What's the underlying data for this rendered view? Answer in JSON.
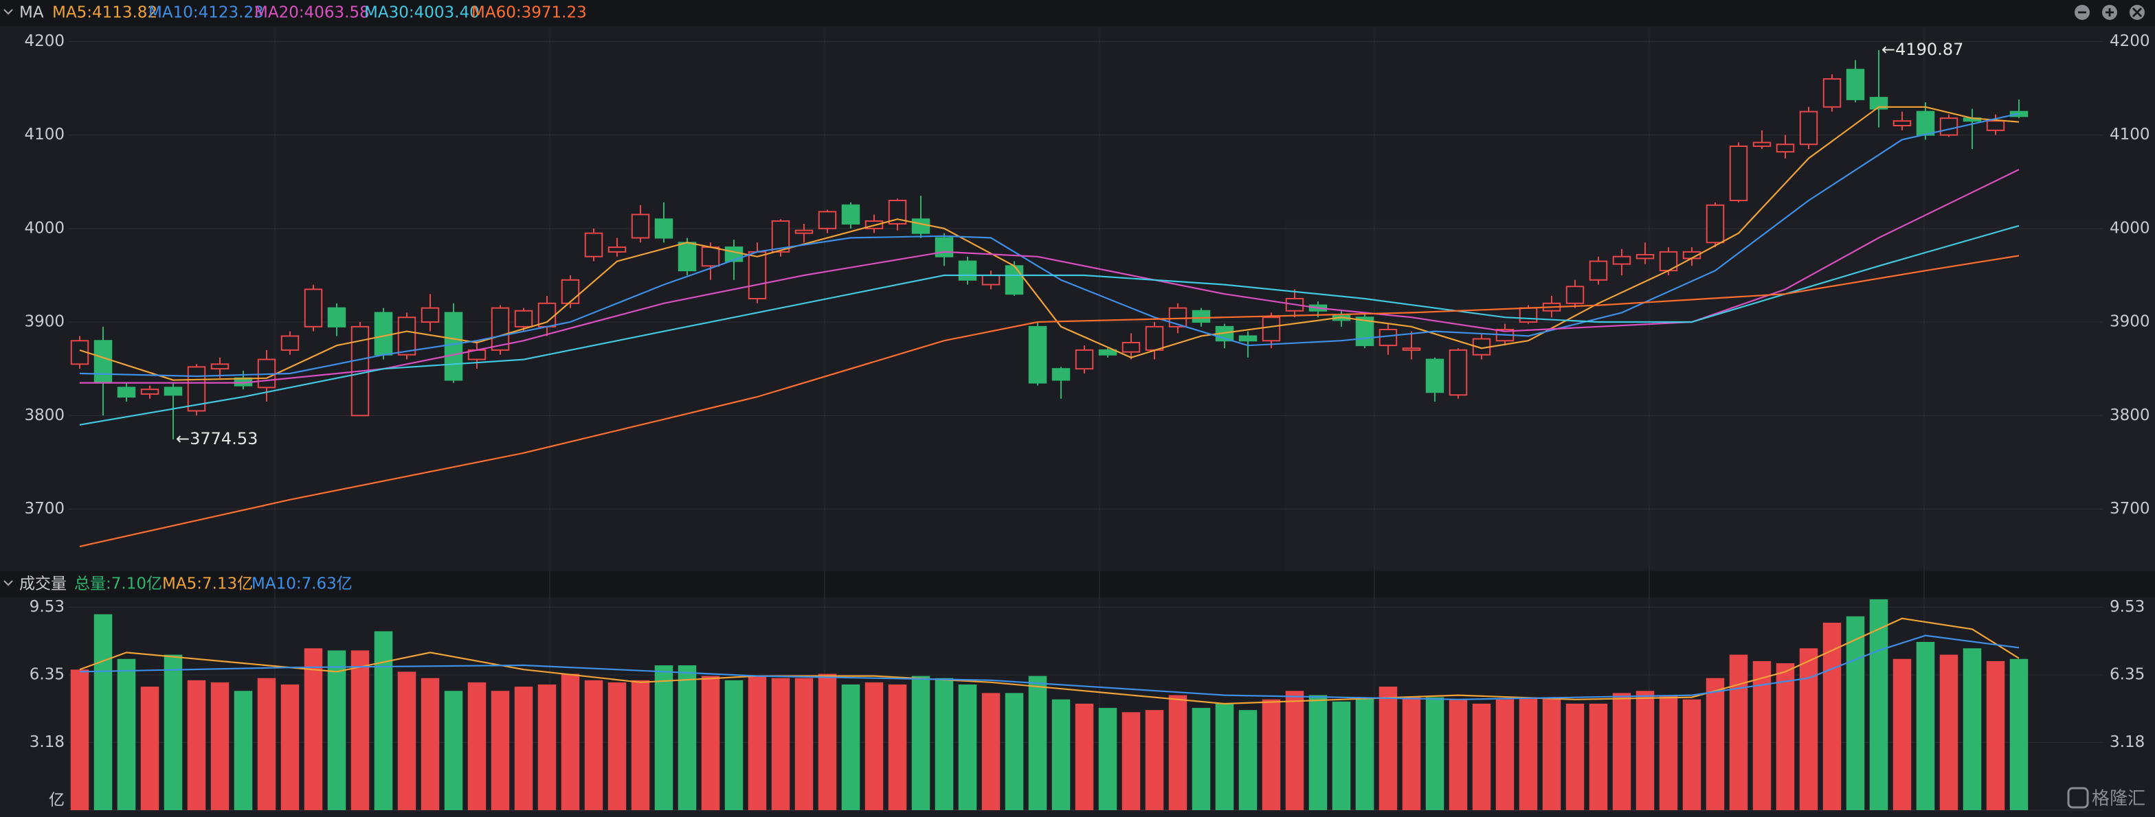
{
  "chart_data": [
    {
      "type": "candlestick",
      "title": "MA",
      "up_color": "#e9464a",
      "down_color": "#2db56d",
      "open": [
        3855,
        3880,
        3830,
        3823,
        3830,
        3805,
        3850,
        3840,
        3830,
        3870,
        3895,
        3915,
        3800,
        3910,
        3865,
        3900,
        3910,
        3860,
        3870,
        3895,
        3895,
        3920,
        3970,
        3975,
        3990,
        4010,
        3985,
        3960,
        3980,
        3925,
        3975,
        3995,
        4000,
        4025,
        4000,
        4005,
        4010,
        3990,
        3965,
        3940,
        3960,
        3895,
        3850,
        3850,
        3870,
        3868,
        3870,
        3895,
        3912,
        3895,
        3885,
        3880,
        3912,
        3918,
        3908,
        3905,
        3875,
        3870,
        3860,
        3822,
        3865,
        3880,
        3900,
        3912,
        3920,
        3945,
        3962,
        3968,
        3955,
        3968,
        3985,
        4030,
        4088,
        4082,
        4090,
        4130,
        4170,
        4140,
        4110,
        4125,
        4100,
        4118,
        4105,
        4125
      ],
      "high": [
        3885,
        3895,
        3835,
        3832,
        3835,
        3855,
        3862,
        3848,
        3870,
        3890,
        3940,
        3920,
        3900,
        3915,
        3910,
        3930,
        3920,
        3880,
        3918,
        3915,
        3928,
        3950,
        4000,
        3990,
        4025,
        4028,
        3990,
        3985,
        3988,
        3985,
        4010,
        4005,
        4020,
        4028,
        4015,
        4032,
        4035,
        3995,
        3970,
        3955,
        3965,
        3900,
        3852,
        3875,
        3872,
        3888,
        3900,
        3920,
        3915,
        3898,
        3890,
        3910,
        3935,
        3922,
        3912,
        3910,
        3898,
        3890,
        3862,
        3872,
        3888,
        3898,
        3918,
        3928,
        3945,
        3970,
        3978,
        3985,
        3980,
        3980,
        4028,
        4092,
        4105,
        4100,
        4130,
        4165,
        4180,
        4190.87,
        4125,
        4135,
        4122,
        4128,
        4122,
        4138
      ],
      "low": [
        3850,
        3800,
        3815,
        3818,
        3774.53,
        3800,
        3840,
        3828,
        3815,
        3865,
        3890,
        3885,
        3800,
        3860,
        3860,
        3890,
        3835,
        3850,
        3865,
        3890,
        3885,
        3915,
        3965,
        3970,
        3985,
        3985,
        3950,
        3945,
        3945,
        3920,
        3970,
        3985,
        3995,
        4000,
        3995,
        3998,
        3990,
        3960,
        3940,
        3935,
        3928,
        3832,
        3818,
        3845,
        3862,
        3860,
        3860,
        3888,
        3895,
        3872,
        3862,
        3872,
        3905,
        3905,
        3895,
        3872,
        3865,
        3860,
        3815,
        3818,
        3860,
        3875,
        3898,
        3905,
        3915,
        3940,
        3950,
        3962,
        3950,
        3960,
        3980,
        4028,
        4085,
        4075,
        4085,
        4125,
        4135,
        4108,
        4105,
        4095,
        4098,
        4085,
        4100,
        4118
      ],
      "close": [
        3880,
        3835,
        3820,
        3828,
        3822,
        3852,
        3855,
        3832,
        3860,
        3885,
        3935,
        3895,
        3895,
        3865,
        3905,
        3915,
        3838,
        3870,
        3915,
        3912,
        3920,
        3945,
        3995,
        3980,
        4015,
        3990,
        3955,
        3980,
        3965,
        3975,
        4008,
        3998,
        4018,
        4005,
        4008,
        4030,
        3995,
        3970,
        3945,
        3950,
        3930,
        3835,
        3838,
        3870,
        3865,
        3878,
        3895,
        3915,
        3900,
        3880,
        3880,
        3905,
        3925,
        3912,
        3902,
        3875,
        3892,
        3872,
        3825,
        3870,
        3882,
        3892,
        3915,
        3920,
        3938,
        3965,
        3970,
        3972,
        3975,
        3975,
        4025,
        4088,
        4092,
        4090,
        4125,
        4160,
        4138,
        4128,
        4115,
        4100,
        4118,
        4115,
        4115,
        4120
      ],
      "series": [
        {
          "name": "MA5:4113.82",
          "color": "#f0a236",
          "x": [
            1,
            5,
            9,
            12,
            15,
            18,
            21,
            24,
            27,
            30,
            33,
            36,
            38,
            41,
            43,
            46,
            49,
            52,
            55,
            58,
            61,
            63,
            66,
            69,
            72,
            75,
            78,
            80,
            82,
            84
          ],
          "values": [
            3870,
            3838,
            3840,
            3875,
            3890,
            3878,
            3900,
            3965,
            3985,
            3970,
            3990,
            4010,
            4000,
            3960,
            3895,
            3862,
            3885,
            3895,
            3905,
            3895,
            3872,
            3880,
            3920,
            3955,
            3995,
            4075,
            4130,
            4130,
            4118,
            4114
          ]
        },
        {
          "name": "MA10:4123.23",
          "color": "#3d8fe8",
          "x": [
            1,
            6,
            10,
            14,
            18,
            22,
            26,
            30,
            34,
            38,
            40,
            43,
            47,
            51,
            55,
            59,
            63,
            67,
            71,
            75,
            79,
            84
          ],
          "values": [
            3845,
            3842,
            3845,
            3865,
            3880,
            3900,
            3940,
            3975,
            3990,
            3992,
            3990,
            3945,
            3905,
            3875,
            3880,
            3890,
            3885,
            3910,
            3955,
            4030,
            4095,
            4123
          ]
        },
        {
          "name": "MA20:4063.58",
          "color": "#d94fc0",
          "x": [
            1,
            8,
            14,
            20,
            26,
            32,
            38,
            42,
            46,
            50,
            54,
            58,
            62,
            66,
            70,
            74,
            78,
            84
          ],
          "values": [
            3835,
            3835,
            3850,
            3880,
            3920,
            3950,
            3975,
            3970,
            3950,
            3930,
            3915,
            3905,
            3890,
            3895,
            3900,
            3935,
            3990,
            4063
          ]
        },
        {
          "name": "MA30:4003.40",
          "color": "#40c8e0",
          "x": [
            1,
            8,
            14,
            20,
            26,
            32,
            38,
            44,
            50,
            56,
            62,
            66,
            70,
            74,
            78,
            84
          ],
          "values": [
            3790,
            3820,
            3850,
            3860,
            3890,
            3920,
            3950,
            3950,
            3940,
            3925,
            3905,
            3900,
            3900,
            3930,
            3960,
            4003
          ]
        },
        {
          "name": "MA60:3971.23",
          "color": "#ff6e2e",
          "x": [
            1,
            10,
            20,
            30,
            38,
            42,
            50,
            58,
            66,
            74,
            80,
            84
          ],
          "values": [
            3660,
            3710,
            3760,
            3820,
            3880,
            3900,
            3905,
            3910,
            3918,
            3930,
            3955,
            3971
          ]
        }
      ],
      "annotations": [
        {
          "label": "←4190.87",
          "x": 78,
          "value": 4190.87
        },
        {
          "label": "←3774.53",
          "x": 5,
          "value": 3774.53
        }
      ],
      "ylim": [
        3635,
        4215
      ],
      "yticks": [
        3700,
        3800,
        3900,
        4000,
        4100,
        4200
      ],
      "grid": true
    },
    {
      "type": "bar",
      "title": "成交量",
      "total": "总量:7.10亿",
      "total_color": "#2db56d",
      "values": [
        6.6,
        9.2,
        7.1,
        5.8,
        7.3,
        6.1,
        6.0,
        5.6,
        6.2,
        5.9,
        7.6,
        7.5,
        7.5,
        8.4,
        6.5,
        6.2,
        5.6,
        6.0,
        5.6,
        5.8,
        5.9,
        6.4,
        6.1,
        6.0,
        6.1,
        6.8,
        6.8,
        6.3,
        6.1,
        6.3,
        6.2,
        6.2,
        6.4,
        5.9,
        6.0,
        5.9,
        6.3,
        6.2,
        5.9,
        5.5,
        5.5,
        6.3,
        5.2,
        5.0,
        4.8,
        4.6,
        4.7,
        5.4,
        4.8,
        5.0,
        4.7,
        5.2,
        5.6,
        5.4,
        5.1,
        5.3,
        5.8,
        5.3,
        5.3,
        5.2,
        5.0,
        5.2,
        5.3,
        5.3,
        5.0,
        5.0,
        5.5,
        5.6,
        5.4,
        5.2,
        6.2,
        7.3,
        7.0,
        6.9,
        7.6,
        8.8,
        9.1,
        9.9,
        7.1,
        7.9,
        7.3,
        7.6,
        7.0,
        7.1
      ],
      "series": [
        {
          "name": "MA5:7.13亿",
          "color": "#f0a236",
          "x": [
            1,
            3,
            8,
            12,
            16,
            20,
            25,
            30,
            35,
            40,
            45,
            50,
            55,
            60,
            65,
            70,
            74,
            77,
            79,
            82,
            84
          ],
          "values": [
            6.6,
            7.4,
            6.9,
            6.5,
            7.4,
            6.6,
            6.0,
            6.3,
            6.3,
            6.0,
            5.5,
            5.0,
            5.2,
            5.4,
            5.2,
            5.3,
            6.5,
            8.0,
            9.0,
            8.5,
            7.13
          ]
        },
        {
          "name": "MA10:7.63亿",
          "color": "#3d8fe8",
          "x": [
            1,
            10,
            20,
            30,
            40,
            50,
            60,
            70,
            75,
            78,
            80,
            84
          ],
          "values": [
            6.5,
            6.7,
            6.8,
            6.3,
            6.1,
            5.4,
            5.2,
            5.4,
            6.2,
            7.5,
            8.2,
            7.63
          ]
        }
      ],
      "ylim": [
        0,
        9.93
      ],
      "yticks": [
        {
          "value": 0,
          "label": "亿"
        },
        3.18,
        6.35,
        9.53
      ],
      "grid": true
    }
  ],
  "watermark": "格隆汇"
}
